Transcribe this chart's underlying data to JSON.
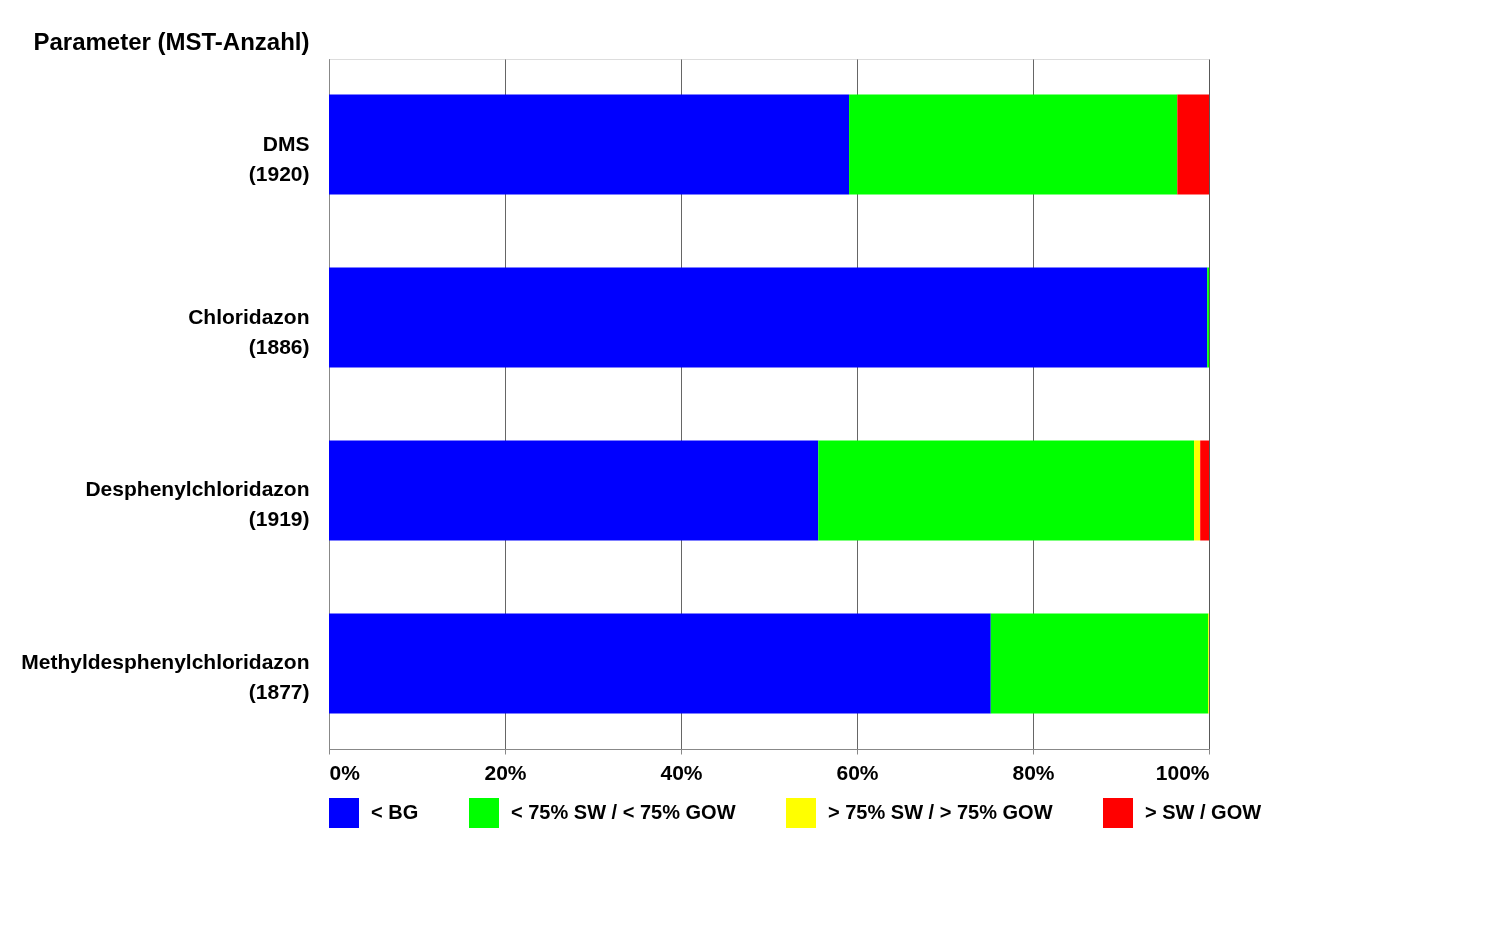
{
  "chart_data": {
    "type": "bar",
    "orientation": "horizontal",
    "stacked": true,
    "ylabel": "Parameter (MST-Anzahl)",
    "categories": [
      "DMS\n(1920)",
      "Chloridazon\n(1886)",
      "Desphenylchloridazon\n(1919)",
      "Methyldesphenylchloridazon\n(1877)"
    ],
    "series": [
      {
        "name": "< BG",
        "color": "#0000ff",
        "values": [
          59.1,
          99.8,
          55.6,
          75.2
        ]
      },
      {
        "name": "< 75% SW / < 75% GOW",
        "color": "#00ff00",
        "values": [
          37.3,
          0.2,
          42.7,
          24.7
        ]
      },
      {
        "name": "> 75% SW / > 75% GOW",
        "color": "#ffff00",
        "values": [
          null,
          null,
          0.7,
          0.1
        ]
      },
      {
        "name": "> SW / GOW",
        "color": "#ff0000",
        "values": [
          3.6,
          null,
          1.0,
          null
        ]
      }
    ],
    "xlim": [
      0,
      100
    ],
    "xticks": [
      {
        "value": 0,
        "label": "0%"
      },
      {
        "value": 20,
        "label": "20%"
      },
      {
        "value": 40,
        "label": "40%"
      },
      {
        "value": 60,
        "label": "60%"
      },
      {
        "value": 80,
        "label": "80%"
      },
      {
        "value": 100,
        "label": "100%"
      }
    ],
    "grid": "x",
    "legend": "bottom"
  }
}
